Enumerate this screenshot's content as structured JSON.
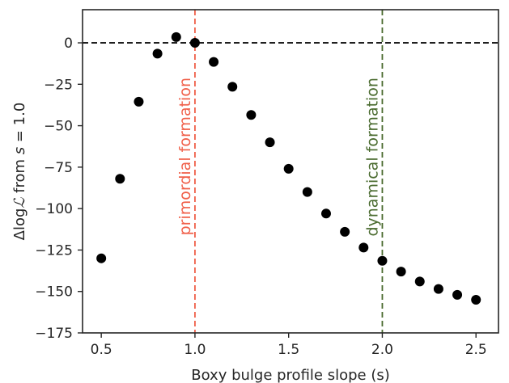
{
  "chart_data": {
    "type": "scatter",
    "title": "",
    "xlabel": "Boxy bulge profile slope (s)",
    "ylabel_parts": {
      "pre": "Δlog",
      "script": "ℒ",
      "mid": " from ",
      "var": "s",
      "post": " = 1.0"
    },
    "xlim": [
      0.4,
      2.62
    ],
    "ylim": [
      -175,
      20
    ],
    "xticks": [
      0.5,
      1.0,
      1.5,
      2.0,
      2.5
    ],
    "xtick_labels": [
      "0.5",
      "1.0",
      "1.5",
      "2.0",
      "2.5"
    ],
    "yticks": [
      0,
      -25,
      -50,
      -75,
      -100,
      -125,
      -150,
      -175
    ],
    "ytick_labels": [
      "0",
      "−25",
      "−50",
      "−75",
      "−100",
      "−125",
      "−150",
      "−175"
    ],
    "grid": false,
    "series": [
      {
        "color": "#000000",
        "marker": "circle",
        "x": [
          0.5,
          0.6,
          0.7,
          0.8,
          0.9,
          1.0,
          1.1,
          1.2,
          1.3,
          1.4,
          1.5,
          1.6,
          1.7,
          1.8,
          1.9,
          2.0,
          2.1,
          2.2,
          2.3,
          2.4,
          2.5
        ],
        "y": [
          -130,
          -82,
          -35.5,
          -6.5,
          3.5,
          0,
          -11.5,
          -26.5,
          -43.5,
          -60,
          -76,
          -90,
          -103,
          -114,
          -123.5,
          -131.5,
          -138,
          -144,
          -148.5,
          -152,
          -155
        ]
      }
    ],
    "reference_lines": [
      {
        "orientation": "horizontal",
        "value": 0,
        "style": "dashed",
        "color": "#000000"
      },
      {
        "orientation": "vertical",
        "value": 1.0,
        "style": "dashed",
        "color": "#f0604a",
        "label": "primordial formation"
      },
      {
        "orientation": "vertical",
        "value": 2.0,
        "style": "dashed",
        "color": "#4a6b2f",
        "label": "dynamical formation"
      }
    ]
  }
}
